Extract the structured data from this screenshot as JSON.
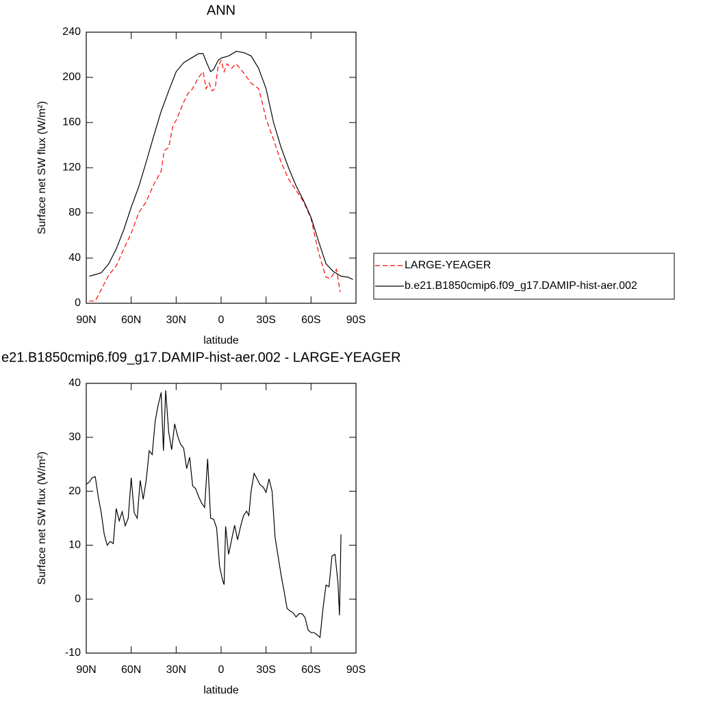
{
  "chart_data": [
    {
      "type": "line",
      "title": "ANN",
      "xlabel": "latitude",
      "ylabel": "Surface net SW flux (W/m²)",
      "xlim": [
        90,
        -90
      ],
      "ylim": [
        0,
        240
      ],
      "xticks": [
        {
          "value": 90,
          "label": "90N"
        },
        {
          "value": 60,
          "label": "60N"
        },
        {
          "value": 30,
          "label": "30N"
        },
        0,
        {
          "value": -30,
          "label": "30S"
        },
        {
          "value": -60,
          "label": "60S"
        },
        {
          "value": -90,
          "label": "90S"
        }
      ],
      "yticks": [
        0,
        40,
        80,
        120,
        160,
        200,
        240
      ],
      "legend": "right",
      "series": [
        {
          "name": "LARGE-YEAGER",
          "color": "#ff0000",
          "dash": true,
          "x": [
            88,
            84,
            80,
            75,
            70,
            65,
            60,
            55,
            50,
            45,
            40,
            38,
            35,
            32,
            30,
            25,
            22,
            20,
            15,
            12,
            10,
            8,
            6,
            4,
            2,
            0,
            -2,
            -4,
            -7,
            -10,
            -15,
            -20,
            -25,
            -28,
            -30,
            -35,
            -40,
            -45,
            -50,
            -55,
            -60,
            -65,
            -70,
            -73,
            -77,
            -79.5
          ],
          "values": [
            2,
            2,
            12,
            25,
            33,
            48,
            62,
            80,
            90,
            105,
            117,
            135,
            138,
            158,
            162,
            178,
            186,
            188,
            200,
            205,
            190,
            195,
            188,
            190,
            210,
            215,
            205,
            212,
            208,
            212,
            204,
            195,
            190,
            175,
            163,
            145,
            125,
            110,
            100,
            90,
            75,
            45,
            23,
            22,
            30,
            10
          ]
        },
        {
          "name": "b.e21.B1850cmip6.f09_g17.DAMIP-hist-aer.002",
          "color": "#000000",
          "dash": false,
          "x": [
            88,
            85,
            80,
            75,
            70,
            65,
            60,
            55,
            50,
            45,
            40,
            35,
            30,
            25,
            20,
            15,
            12,
            10,
            7,
            5,
            2,
            0,
            -5,
            -10,
            -15,
            -20,
            -25,
            -30,
            -35,
            -40,
            -45,
            -50,
            -55,
            -60,
            -65,
            -70,
            -75,
            -80,
            -85,
            -88
          ],
          "values": [
            24,
            25,
            27,
            35,
            48,
            65,
            85,
            103,
            125,
            148,
            170,
            188,
            205,
            213,
            217,
            221,
            221,
            214,
            205,
            207,
            215,
            217,
            219,
            223,
            222,
            219,
            208,
            190,
            160,
            138,
            120,
            104,
            91,
            76,
            55,
            35,
            28,
            24,
            23,
            21
          ]
        }
      ]
    },
    {
      "type": "line",
      "title": "e21.B1850cmip6.f09_g17.DAMIP-hist-aer.002 - LARGE-YEAGER",
      "xlabel": "latitude",
      "ylabel": "Surface net SW flux (W/m²)",
      "xlim": [
        90,
        -90
      ],
      "ylim": [
        -10,
        40
      ],
      "xticks": [
        {
          "value": 90,
          "label": "90N"
        },
        {
          "value": 60,
          "label": "60N"
        },
        {
          "value": 30,
          "label": "30N"
        },
        0,
        {
          "value": -30,
          "label": "30S"
        },
        {
          "value": -60,
          "label": "60S"
        },
        {
          "value": -90,
          "label": "90S"
        }
      ],
      "yticks": [
        -10,
        0,
        10,
        20,
        30,
        40
      ],
      "series": [
        {
          "color": "#000000",
          "dash": false,
          "x": [
            90,
            88,
            86,
            84,
            82,
            80,
            78,
            76,
            74,
            72,
            70,
            68,
            66,
            64,
            62,
            60,
            58,
            56,
            54,
            52,
            50,
            48,
            46,
            44,
            42,
            40,
            38.5,
            37,
            35,
            33,
            31,
            29,
            27,
            25,
            23,
            21,
            19,
            17,
            15,
            13,
            11,
            9,
            7,
            5,
            3,
            1,
            -1,
            -2,
            -3,
            -5,
            -7,
            -9,
            -11,
            -13,
            -15,
            -17,
            -18.5,
            -20,
            -22,
            -24,
            -26,
            -28,
            -30,
            -32,
            -34,
            -36,
            -38,
            -40,
            -42,
            -44,
            -46,
            -48,
            -50,
            -52,
            -54,
            -56,
            -58,
            -60,
            -62,
            -64,
            -66,
            -68,
            -70,
            -72,
            -74,
            -76,
            -78,
            -79,
            -80
          ],
          "values": [
            21.3,
            21.7,
            22.5,
            22.7,
            19,
            16,
            12,
            10,
            10.7,
            10.3,
            16.8,
            14.5,
            16.2,
            13.6,
            15,
            22.5,
            16,
            15,
            22,
            18.5,
            22,
            27.5,
            26.8,
            33,
            36,
            38.3,
            27.5,
            38.7,
            31,
            27.7,
            32.5,
            30.2,
            28.7,
            28,
            24.2,
            26.3,
            21,
            20.5,
            19,
            17.8,
            17,
            26,
            15,
            14.8,
            13.2,
            6,
            3.5,
            2.7,
            13.5,
            8.3,
            11,
            13.7,
            11,
            13.5,
            15.5,
            16.3,
            15.5,
            20,
            23.3,
            22.3,
            21.2,
            20.8,
            19.8,
            22.3,
            20,
            11.5,
            8,
            4.5,
            1.5,
            -1.7,
            -2.2,
            -2.5,
            -3.3,
            -2.7,
            -2.7,
            -3.4,
            -5.7,
            -6.2,
            -6.2,
            -6.6,
            -7.1,
            -1.7,
            2.6,
            2.3,
            8,
            8.3,
            3,
            -3,
            12
          ]
        }
      ]
    }
  ]
}
